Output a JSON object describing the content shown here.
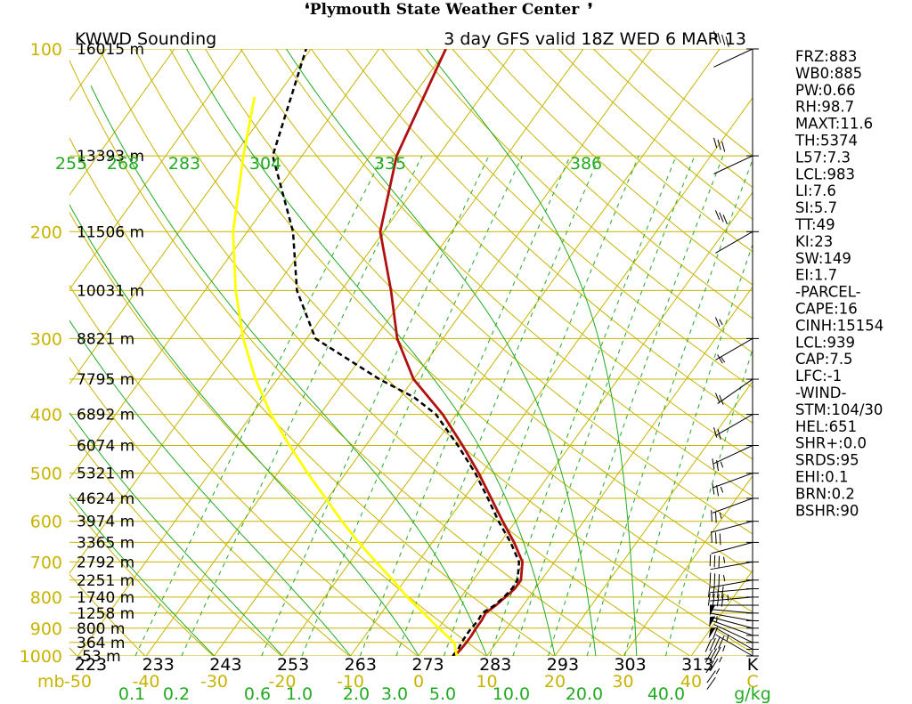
{
  "header": {
    "center_title": "Plymouth State Weather Center",
    "left_title": "KWWD Sounding",
    "right_title": "3 day GFS valid 18Z WED 6 MAR 13"
  },
  "chart_data": {
    "type": "skew-t",
    "x_axis": {
      "temperature_ticks": [
        "-50",
        "-40",
        "-30",
        "-20",
        "-10",
        "0",
        "10",
        "20",
        "30",
        "40"
      ],
      "temperature_unit": "C",
      "pressure_axis_label": "mb",
      "mixing_ratio_ticks": [
        "0.1",
        "0.2",
        "0.6",
        "1.0",
        "2.0",
        "3.0",
        "5.0",
        "10.0",
        "20.0",
        "40.0"
      ],
      "mixing_ratio_unit": "g/kg",
      "theta_ticks": [
        "223",
        "233",
        "243",
        "253",
        "263",
        "273",
        "283",
        "293",
        "303",
        "313"
      ],
      "theta_unit": "K"
    },
    "y_axis": {
      "pressure_labels": [
        "100",
        "200",
        "300",
        "400",
        "500",
        "600",
        "700",
        "800",
        "900",
        "1000"
      ],
      "height_labels": [
        {
          "p": 100,
          "h": "16015 m"
        },
        {
          "p": 150,
          "h": "13393 m"
        },
        {
          "p": 200,
          "h": "11506 m"
        },
        {
          "p": 250,
          "h": "10031 m"
        },
        {
          "p": 300,
          "h": "8821 m"
        },
        {
          "p": 350,
          "h": "7795 m"
        },
        {
          "p": 400,
          "h": "6892 m"
        },
        {
          "p": 450,
          "h": "6074 m"
        },
        {
          "p": 500,
          "h": "5321 m"
        },
        {
          "p": 550,
          "h": "4624 m"
        },
        {
          "p": 600,
          "h": "3974 m"
        },
        {
          "p": 650,
          "h": "3365 m"
        },
        {
          "p": 700,
          "h": "2792 m"
        },
        {
          "p": 750,
          "h": "2251 m"
        },
        {
          "p": 800,
          "h": "1740 m"
        },
        {
          "p": 850,
          "h": "1258 m"
        },
        {
          "p": 900,
          "h": "800 m"
        },
        {
          "p": 950,
          "h": "364 m"
        },
        {
          "p": 1000,
          "h": "-53 m"
        }
      ]
    },
    "theta_e_labels": [
      "255",
      "268",
      "283",
      "304",
      "335",
      "386"
    ],
    "series": [
      {
        "color": "#b01010",
        "style": "solid",
        "points": [
          [
            1000,
            5.3
          ],
          [
            975,
            5.5
          ],
          [
            950,
            5.6
          ],
          [
            925,
            5.6
          ],
          [
            900,
            5.5
          ],
          [
            875,
            5.5
          ],
          [
            850,
            5.3
          ],
          [
            825,
            6.0
          ],
          [
            800,
            6.5
          ],
          [
            775,
            7.0
          ],
          [
            750,
            7.0
          ],
          [
            700,
            5.3
          ],
          [
            650,
            2.0
          ],
          [
            600,
            -1.9
          ],
          [
            550,
            -6.0
          ],
          [
            500,
            -10.5
          ],
          [
            450,
            -15.8
          ],
          [
            400,
            -22.0
          ],
          [
            350,
            -30.0
          ],
          [
            300,
            -36.7
          ],
          [
            250,
            -42.7
          ],
          [
            200,
            -50.5
          ],
          [
            150,
            -56.1
          ],
          [
            100,
            -60.2
          ]
        ]
      },
      {
        "color": "#000000",
        "style": "dashed",
        "points": [
          [
            1000,
            5.0
          ],
          [
            975,
            5.1
          ],
          [
            950,
            4.9
          ],
          [
            925,
            4.8
          ],
          [
            900,
            4.8
          ],
          [
            875,
            5.0
          ],
          [
            850,
            4.8
          ],
          [
            825,
            5.8
          ],
          [
            800,
            6.3
          ],
          [
            775,
            6.6
          ],
          [
            750,
            6.5
          ],
          [
            700,
            4.8
          ],
          [
            650,
            1.5
          ],
          [
            600,
            -2.5
          ],
          [
            550,
            -6.5
          ],
          [
            500,
            -11.0
          ],
          [
            450,
            -16.5
          ],
          [
            400,
            -23.0
          ],
          [
            375,
            -28.0
          ],
          [
            350,
            -35.0
          ],
          [
            300,
            -48.7
          ],
          [
            250,
            -56.5
          ],
          [
            200,
            -63.3
          ],
          [
            150,
            -74.3
          ],
          [
            100,
            -80.7
          ]
        ]
      },
      {
        "color": "#ffff00",
        "style": "solid",
        "points": [
          [
            1000,
            5.6
          ],
          [
            950,
            3.8
          ],
          [
            900,
            0.0
          ],
          [
            850,
            -3.8
          ],
          [
            800,
            -7.9
          ],
          [
            750,
            -11.8
          ],
          [
            700,
            -16.2
          ],
          [
            650,
            -20.8
          ],
          [
            600,
            -25.5
          ],
          [
            550,
            -30.3
          ],
          [
            500,
            -35.6
          ],
          [
            450,
            -41.2
          ],
          [
            400,
            -47.2
          ],
          [
            350,
            -53.2
          ],
          [
            300,
            -59.3
          ],
          [
            250,
            -65.5
          ],
          [
            200,
            -72.1
          ],
          [
            150,
            -78.6
          ],
          [
            120,
            -83.2
          ]
        ]
      }
    ],
    "wind_barbs": [
      {
        "p": 1000,
        "dir": 240,
        "speed": 10
      },
      {
        "p": 975,
        "dir": 240,
        "speed": 15
      },
      {
        "p": 950,
        "dir": 245,
        "speed": 25
      },
      {
        "p": 925,
        "dir": 250,
        "speed": 35
      },
      {
        "p": 900,
        "dir": 255,
        "speed": 45
      },
      {
        "p": 875,
        "dir": 260,
        "speed": 60
      },
      {
        "p": 850,
        "dir": 265,
        "speed": 55
      },
      {
        "p": 825,
        "dir": 270,
        "speed": 50
      },
      {
        "p": 800,
        "dir": 275,
        "speed": 45
      },
      {
        "p": 775,
        "dir": 275,
        "speed": 40
      },
      {
        "p": 750,
        "dir": 280,
        "speed": 35
      },
      {
        "p": 700,
        "dir": 280,
        "speed": 35
      },
      {
        "p": 650,
        "dir": 285,
        "speed": 30
      },
      {
        "p": 600,
        "dir": 285,
        "speed": 25
      },
      {
        "p": 550,
        "dir": 290,
        "speed": 25
      },
      {
        "p": 500,
        "dir": 290,
        "speed": 25
      },
      {
        "p": 450,
        "dir": 295,
        "speed": 20
      },
      {
        "p": 400,
        "dir": 300,
        "speed": 20
      },
      {
        "p": 350,
        "dir": 305,
        "speed": 15
      },
      {
        "p": 300,
        "dir": 300,
        "speed": 15
      },
      {
        "p": 200,
        "dir": 300,
        "speed": 30
      },
      {
        "p": 150,
        "dir": 295,
        "speed": 30
      },
      {
        "p": 100,
        "dir": 295,
        "speed": 40
      }
    ]
  },
  "indices": [
    "FRZ:883",
    "WB0:885",
    "PW:0.66",
    "RH:98.7",
    "MAXT:11.6",
    "TH:5374",
    "L57:7.3",
    "LCL:983",
    "LI:7.6",
    "SI:5.7",
    "TT:49",
    "KI:23",
    "SW:149",
    "EI:1.7",
    "-PARCEL-",
    "CAPE:16",
    "CINH:15154",
    "LCL:939",
    "CAP:7.5",
    "LFC:-1",
    "-WIND-",
    "STM:104/30",
    "HEL:651",
    "SHR+:0.0",
    "SRDS:95",
    "EHI:0.1",
    "BRN:0.2",
    "BSHR:90"
  ],
  "colors": {
    "grid": "#c8b400",
    "moist_adiabat": "#22aa22",
    "mixing_ratio": "#22aa22",
    "temperature": "#b01010",
    "dewpoint": "#000000",
    "parcel": "#ffff00"
  }
}
